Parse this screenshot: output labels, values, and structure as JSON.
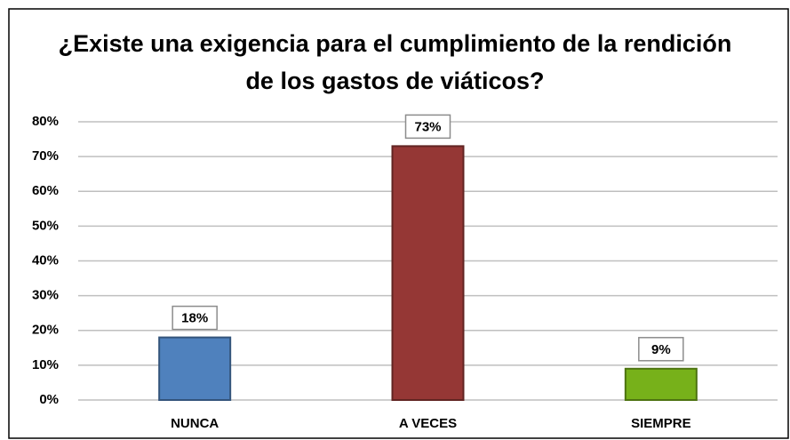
{
  "chart_data": {
    "type": "bar",
    "title": "¿Existe una exigencia para el cumplimiento de la rendición de los gastos de viáticos?",
    "categories": [
      "NUNCA",
      "A VECES",
      "SIEMPRE"
    ],
    "values": [
      18,
      73,
      9
    ],
    "value_labels": [
      "18%",
      "73%",
      "9%"
    ],
    "colors": [
      "#4f81bd",
      "#953735",
      "#77b11a"
    ],
    "ylim": [
      0,
      80
    ],
    "yticks": [
      {
        "value": 0,
        "label": "0%"
      },
      {
        "value": 10,
        "label": "10%"
      },
      {
        "value": 20,
        "label": "20%"
      },
      {
        "value": 30,
        "label": "30%"
      },
      {
        "value": 40,
        "label": "40%"
      },
      {
        "value": 50,
        "label": "50%"
      },
      {
        "value": 60,
        "label": "60%"
      },
      {
        "value": 70,
        "label": "70%"
      },
      {
        "value": 80,
        "label": "80%"
      }
    ],
    "grid": true
  }
}
